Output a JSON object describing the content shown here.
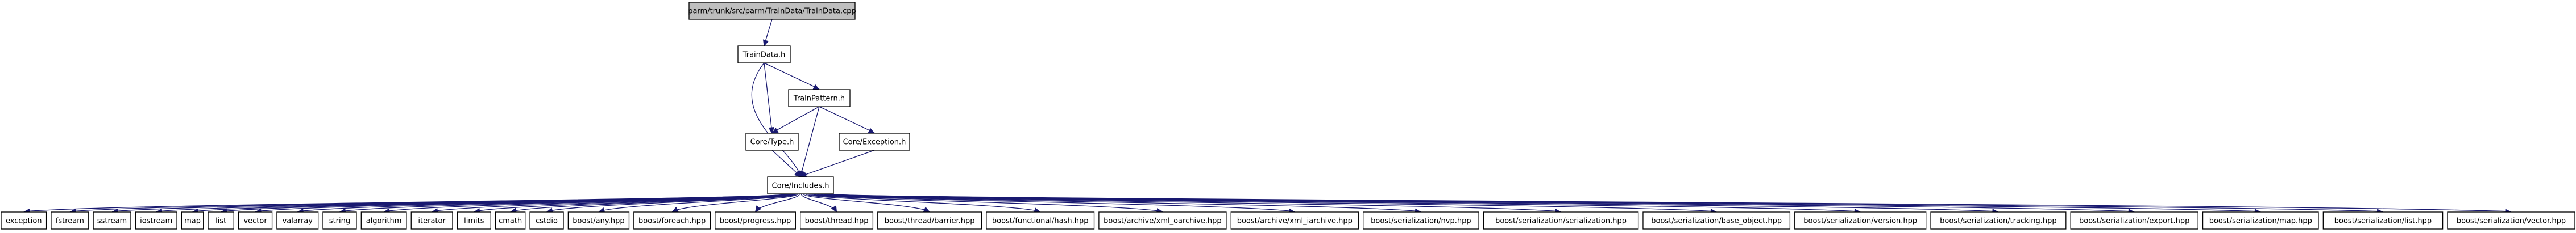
{
  "nodes": {
    "root": "parm/trunk/src/parm/TrainData/TrainData.cpp",
    "traindata_h": "TrainData.h",
    "trainpattern_h": "TrainPattern.h",
    "core_type_h": "Core/Type.h",
    "core_exception_h": "Core/Exception.h",
    "core_includes_h": "Core/Includes.h"
  },
  "includes": [
    "exception",
    "fstream",
    "sstream",
    "iostream",
    "map",
    "list",
    "vector",
    "valarray",
    "string",
    "algorithm",
    "iterator",
    "limits",
    "cmath",
    "cstdio",
    "boost/any.hpp",
    "boost/foreach.hpp",
    "boost/progress.hpp",
    "boost/thread.hpp",
    "boost/thread/barrier.hpp",
    "boost/functional/hash.hpp",
    "boost/archive/xml_oarchive.hpp",
    "boost/archive/xml_iarchive.hpp",
    "boost/serialization/nvp.hpp",
    "boost/serialization/serialization.hpp",
    "boost/serialization/base_object.hpp",
    "boost/serialization/version.hpp",
    "boost/serialization/tracking.hpp",
    "boost/serialization/export.hpp",
    "boost/serialization/map.hpp",
    "boost/serialization/list.hpp",
    "boost/serialization/vector.hpp"
  ],
  "edges": [
    [
      "root",
      "traindata_h"
    ],
    [
      "traindata_h",
      "trainpattern_h"
    ],
    [
      "traindata_h",
      "core_type_h"
    ],
    [
      "traindata_h",
      "core_includes_h"
    ],
    [
      "trainpattern_h",
      "core_type_h"
    ],
    [
      "trainpattern_h",
      "core_exception_h"
    ],
    [
      "trainpattern_h",
      "core_includes_h"
    ],
    [
      "core_type_h",
      "core_includes_h"
    ],
    [
      "core_exception_h",
      "core_includes_h"
    ]
  ],
  "colors": {
    "edge": "#191970",
    "root_fill": "#bfbfbf",
    "node_fill": "#ffffff",
    "node_stroke": "#000000"
  }
}
